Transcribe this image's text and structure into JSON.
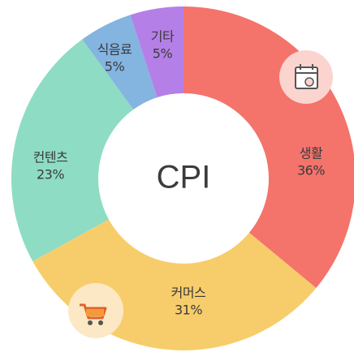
{
  "chart_data": {
    "type": "donut",
    "title": "CPI",
    "categories": [
      "생활",
      "커머스",
      "컨텐츠",
      "식음료",
      "기타"
    ],
    "values": [
      36,
      31,
      23,
      5,
      5
    ],
    "value_labels": [
      "36%",
      "31%",
      "23%",
      "5%",
      "5%"
    ],
    "colors": [
      "#f4736b",
      "#f7cd6b",
      "#8edcc4",
      "#84b4e0",
      "#b57fe8"
    ]
  }
}
